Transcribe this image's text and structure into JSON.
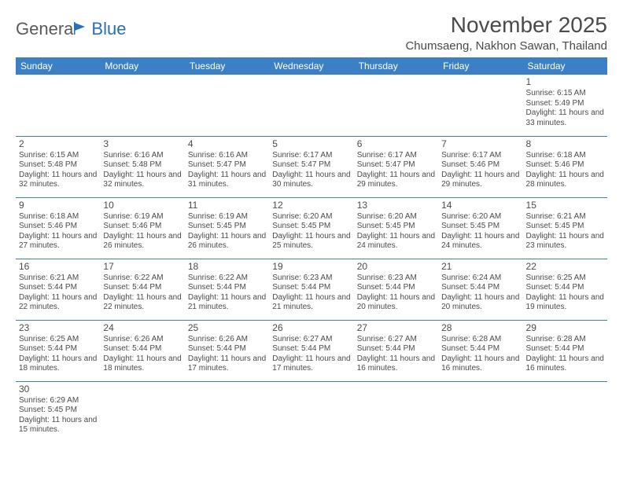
{
  "logo": {
    "part1": "Genera",
    "part2": "Blue"
  },
  "title": "November 2025",
  "location": "Chumsaeng, Nakhon Sawan, Thailand",
  "colors": {
    "header_bg": "#3b7fc4",
    "header_text": "#ffffff",
    "border": "#3b7fc4",
    "text": "#4a4a4a",
    "logo_gray": "#5a5a5a",
    "logo_blue": "#2a6fb5",
    "background": "#ffffff"
  },
  "typography": {
    "title_fontsize": 28,
    "location_fontsize": 15,
    "dayheader_fontsize": 12,
    "daynum_fontsize": 12,
    "body_fontsize": 10
  },
  "day_headers": [
    "Sunday",
    "Monday",
    "Tuesday",
    "Wednesday",
    "Thursday",
    "Friday",
    "Saturday"
  ],
  "weeks": [
    [
      null,
      null,
      null,
      null,
      null,
      null,
      {
        "n": "1",
        "sunrise": "Sunrise: 6:15 AM",
        "sunset": "Sunset: 5:49 PM",
        "daylight": "Daylight: 11 hours and 33 minutes."
      }
    ],
    [
      {
        "n": "2",
        "sunrise": "Sunrise: 6:15 AM",
        "sunset": "Sunset: 5:48 PM",
        "daylight": "Daylight: 11 hours and 32 minutes."
      },
      {
        "n": "3",
        "sunrise": "Sunrise: 6:16 AM",
        "sunset": "Sunset: 5:48 PM",
        "daylight": "Daylight: 11 hours and 32 minutes."
      },
      {
        "n": "4",
        "sunrise": "Sunrise: 6:16 AM",
        "sunset": "Sunset: 5:47 PM",
        "daylight": "Daylight: 11 hours and 31 minutes."
      },
      {
        "n": "5",
        "sunrise": "Sunrise: 6:17 AM",
        "sunset": "Sunset: 5:47 PM",
        "daylight": "Daylight: 11 hours and 30 minutes."
      },
      {
        "n": "6",
        "sunrise": "Sunrise: 6:17 AM",
        "sunset": "Sunset: 5:47 PM",
        "daylight": "Daylight: 11 hours and 29 minutes."
      },
      {
        "n": "7",
        "sunrise": "Sunrise: 6:17 AM",
        "sunset": "Sunset: 5:46 PM",
        "daylight": "Daylight: 11 hours and 29 minutes."
      },
      {
        "n": "8",
        "sunrise": "Sunrise: 6:18 AM",
        "sunset": "Sunset: 5:46 PM",
        "daylight": "Daylight: 11 hours and 28 minutes."
      }
    ],
    [
      {
        "n": "9",
        "sunrise": "Sunrise: 6:18 AM",
        "sunset": "Sunset: 5:46 PM",
        "daylight": "Daylight: 11 hours and 27 minutes."
      },
      {
        "n": "10",
        "sunrise": "Sunrise: 6:19 AM",
        "sunset": "Sunset: 5:46 PM",
        "daylight": "Daylight: 11 hours and 26 minutes."
      },
      {
        "n": "11",
        "sunrise": "Sunrise: 6:19 AM",
        "sunset": "Sunset: 5:45 PM",
        "daylight": "Daylight: 11 hours and 26 minutes."
      },
      {
        "n": "12",
        "sunrise": "Sunrise: 6:20 AM",
        "sunset": "Sunset: 5:45 PM",
        "daylight": "Daylight: 11 hours and 25 minutes."
      },
      {
        "n": "13",
        "sunrise": "Sunrise: 6:20 AM",
        "sunset": "Sunset: 5:45 PM",
        "daylight": "Daylight: 11 hours and 24 minutes."
      },
      {
        "n": "14",
        "sunrise": "Sunrise: 6:20 AM",
        "sunset": "Sunset: 5:45 PM",
        "daylight": "Daylight: 11 hours and 24 minutes."
      },
      {
        "n": "15",
        "sunrise": "Sunrise: 6:21 AM",
        "sunset": "Sunset: 5:45 PM",
        "daylight": "Daylight: 11 hours and 23 minutes."
      }
    ],
    [
      {
        "n": "16",
        "sunrise": "Sunrise: 6:21 AM",
        "sunset": "Sunset: 5:44 PM",
        "daylight": "Daylight: 11 hours and 22 minutes."
      },
      {
        "n": "17",
        "sunrise": "Sunrise: 6:22 AM",
        "sunset": "Sunset: 5:44 PM",
        "daylight": "Daylight: 11 hours and 22 minutes."
      },
      {
        "n": "18",
        "sunrise": "Sunrise: 6:22 AM",
        "sunset": "Sunset: 5:44 PM",
        "daylight": "Daylight: 11 hours and 21 minutes."
      },
      {
        "n": "19",
        "sunrise": "Sunrise: 6:23 AM",
        "sunset": "Sunset: 5:44 PM",
        "daylight": "Daylight: 11 hours and 21 minutes."
      },
      {
        "n": "20",
        "sunrise": "Sunrise: 6:23 AM",
        "sunset": "Sunset: 5:44 PM",
        "daylight": "Daylight: 11 hours and 20 minutes."
      },
      {
        "n": "21",
        "sunrise": "Sunrise: 6:24 AM",
        "sunset": "Sunset: 5:44 PM",
        "daylight": "Daylight: 11 hours and 20 minutes."
      },
      {
        "n": "22",
        "sunrise": "Sunrise: 6:25 AM",
        "sunset": "Sunset: 5:44 PM",
        "daylight": "Daylight: 11 hours and 19 minutes."
      }
    ],
    [
      {
        "n": "23",
        "sunrise": "Sunrise: 6:25 AM",
        "sunset": "Sunset: 5:44 PM",
        "daylight": "Daylight: 11 hours and 18 minutes."
      },
      {
        "n": "24",
        "sunrise": "Sunrise: 6:26 AM",
        "sunset": "Sunset: 5:44 PM",
        "daylight": "Daylight: 11 hours and 18 minutes."
      },
      {
        "n": "25",
        "sunrise": "Sunrise: 6:26 AM",
        "sunset": "Sunset: 5:44 PM",
        "daylight": "Daylight: 11 hours and 17 minutes."
      },
      {
        "n": "26",
        "sunrise": "Sunrise: 6:27 AM",
        "sunset": "Sunset: 5:44 PM",
        "daylight": "Daylight: 11 hours and 17 minutes."
      },
      {
        "n": "27",
        "sunrise": "Sunrise: 6:27 AM",
        "sunset": "Sunset: 5:44 PM",
        "daylight": "Daylight: 11 hours and 16 minutes."
      },
      {
        "n": "28",
        "sunrise": "Sunrise: 6:28 AM",
        "sunset": "Sunset: 5:44 PM",
        "daylight": "Daylight: 11 hours and 16 minutes."
      },
      {
        "n": "29",
        "sunrise": "Sunrise: 6:28 AM",
        "sunset": "Sunset: 5:44 PM",
        "daylight": "Daylight: 11 hours and 16 minutes."
      }
    ],
    [
      {
        "n": "30",
        "sunrise": "Sunrise: 6:29 AM",
        "sunset": "Sunset: 5:45 PM",
        "daylight": "Daylight: 11 hours and 15 minutes."
      },
      null,
      null,
      null,
      null,
      null,
      null
    ]
  ]
}
